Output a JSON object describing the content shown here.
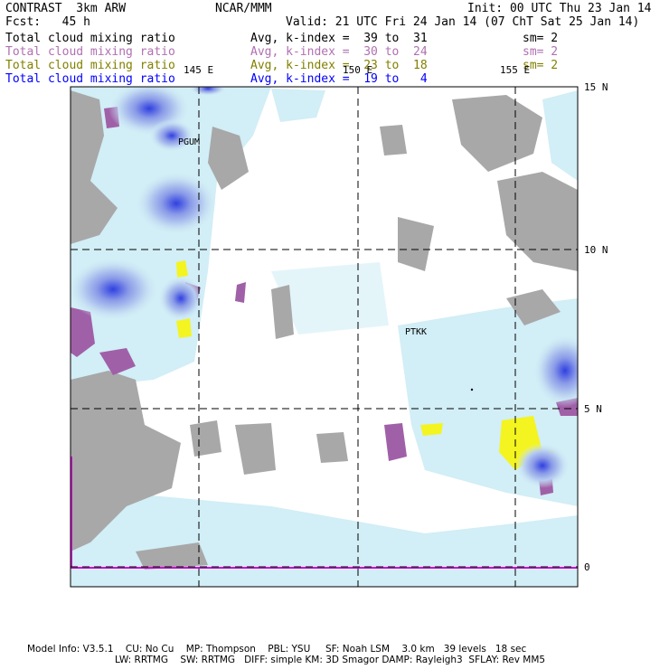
{
  "header": {
    "title": "CONTRAST  3km ARW",
    "org": "NCAR/MMM",
    "init": "Init: 00 UTC Thu 23 Jan 14",
    "fcst": "Fcst:   45 h",
    "valid": "Valid: 21 UTC Fri 24 Jan 14 (07 ChT Sat 25 Jan 14)"
  },
  "fields": [
    {
      "name": "Total cloud mixing ratio",
      "kindex": "Avg, k-index =  39 to  31",
      "sm": "sm= 2",
      "color": "#000000"
    },
    {
      "name": "Total cloud mixing ratio",
      "kindex": "Avg, k-index =  30 to  24",
      "sm": "sm= 2",
      "color": "#b070b0"
    },
    {
      "name": "Total cloud mixing ratio",
      "kindex": "Avg, k-index =  23 to  18",
      "sm": "sm= 2",
      "color": "#808000"
    },
    {
      "name": "Total cloud mixing ratio",
      "kindex": "Avg, k-index =  19 to   4",
      "sm": "",
      "color": "#0000ff"
    }
  ],
  "map": {
    "lon_labels": [
      "145 E",
      "150 E",
      "155 E"
    ],
    "lat_labels": [
      "15 N",
      "10 N",
      "5 N",
      "0"
    ],
    "stations": [
      "PGUM",
      "PTKK"
    ]
  },
  "footer": {
    "line1": "Model Info: V3.5.1    CU: No Cu    MP: Thompson    PBL: YSU     SF: Noah LSM    3.0 km   39 levels   18 sec",
    "line2": "LW: RRTMG    SW: RRTMG   DIFF: simple KM: 3D Smagor DAMP: Rayleigh3  SFLAY: Rev MM5"
  }
}
